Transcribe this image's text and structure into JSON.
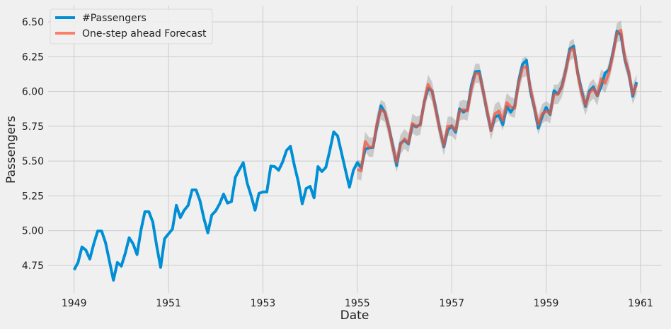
{
  "chart_data": {
    "type": "line",
    "title": "",
    "xlabel": "Date",
    "ylabel": "Passengers",
    "xlim": [
      1948.45,
      1961.45
    ],
    "ylim": [
      4.552,
      6.617
    ],
    "grid": true,
    "legend_placement": "top-left",
    "x_ticks": [
      "1949",
      "1951",
      "1953",
      "1955",
      "1957",
      "1959",
      "1961"
    ],
    "y_ticks": [
      "4.75",
      "5.00",
      "5.25",
      "5.50",
      "5.75",
      "6.00",
      "6.25",
      "6.50"
    ],
    "start": "1949-01",
    "frequency": "monthly",
    "series": [
      {
        "name": "#Passengers",
        "color": "#008fd5",
        "start": "1949-01",
        "values": [
          4.718,
          4.771,
          4.883,
          4.86,
          4.796,
          4.905,
          4.997,
          4.997,
          4.913,
          4.779,
          4.644,
          4.771,
          4.745,
          4.836,
          4.949,
          4.905,
          4.828,
          5.004,
          5.136,
          5.136,
          5.063,
          4.89,
          4.736,
          4.942,
          4.977,
          5.011,
          5.182,
          5.094,
          5.147,
          5.182,
          5.293,
          5.293,
          5.215,
          5.088,
          4.984,
          5.112,
          5.142,
          5.193,
          5.263,
          5.198,
          5.209,
          5.384,
          5.438,
          5.489,
          5.342,
          5.252,
          5.147,
          5.268,
          5.278,
          5.278,
          5.464,
          5.46,
          5.434,
          5.493,
          5.576,
          5.606,
          5.468,
          5.352,
          5.193,
          5.303,
          5.318,
          5.236,
          5.46,
          5.425,
          5.455,
          5.576,
          5.71,
          5.68,
          5.557,
          5.434,
          5.313,
          5.434,
          5.489,
          5.451,
          5.587,
          5.595,
          5.598,
          5.753,
          5.897,
          5.849,
          5.743,
          5.613,
          5.468,
          5.628,
          5.649,
          5.624,
          5.759,
          5.746,
          5.762,
          5.924,
          6.023,
          6.004,
          5.872,
          5.724,
          5.602,
          5.724,
          5.753,
          5.707,
          5.875,
          5.852,
          5.872,
          6.045,
          6.142,
          6.146,
          6.001,
          5.849,
          5.72,
          5.817,
          5.829,
          5.762,
          5.892,
          5.852,
          5.894,
          6.075,
          6.196,
          6.225,
          6.001,
          5.883,
          5.737,
          5.82,
          5.886,
          5.835,
          6.006,
          5.981,
          6.04,
          6.157,
          6.306,
          6.326,
          6.138,
          6.009,
          5.892,
          6.004,
          6.033,
          5.969,
          6.038,
          6.133,
          6.157,
          6.282,
          6.433,
          6.407,
          6.23,
          6.133,
          5.966,
          6.068
        ]
      },
      {
        "name": "One-step ahead Forecast",
        "color": "#fc4f30",
        "start": "1955-01",
        "values": [
          5.44,
          5.43,
          5.64,
          5.6,
          5.6,
          5.77,
          5.87,
          5.85,
          5.74,
          5.6,
          5.49,
          5.62,
          5.66,
          5.63,
          5.77,
          5.75,
          5.76,
          5.92,
          6.05,
          6.0,
          5.86,
          5.72,
          5.61,
          5.75,
          5.75,
          5.72,
          5.86,
          5.87,
          5.86,
          6.02,
          6.13,
          6.13,
          6.0,
          5.86,
          5.72,
          5.84,
          5.86,
          5.79,
          5.92,
          5.89,
          5.88,
          6.06,
          6.17,
          6.18,
          6.02,
          5.89,
          5.76,
          5.84,
          5.86,
          5.84,
          5.98,
          5.98,
          6.03,
          6.15,
          6.29,
          6.31,
          6.13,
          5.99,
          5.9,
          5.99,
          6.02,
          5.97,
          6.09,
          6.06,
          6.14,
          6.27,
          6.42,
          6.44,
          6.24,
          6.14,
          5.98,
          6.05
        ]
      }
    ],
    "confidence_band_color": "#808080"
  }
}
